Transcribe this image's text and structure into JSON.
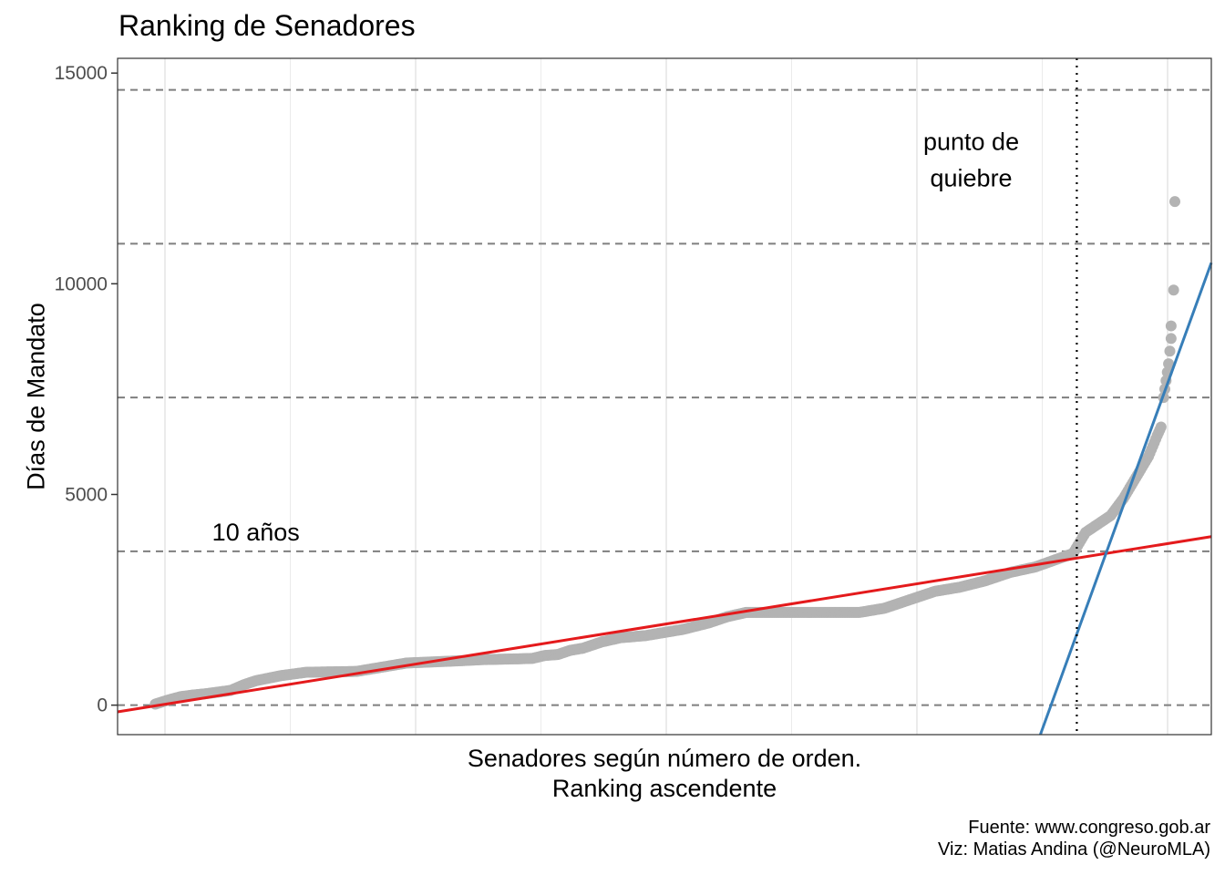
{
  "chart_data": {
    "type": "scatter",
    "title": "Ranking de Senadores",
    "xlabel_line1": "Senadores según número de orden.",
    "xlabel_line2": "Ranking ascendente",
    "ylabel": "Días de Mandato",
    "yticks": [
      "0",
      "5000",
      "10000",
      "15000"
    ],
    "ytick_values": [
      0,
      5000,
      10000,
      15000
    ],
    "ylim": [
      -700,
      15350
    ],
    "xlim": [
      -30,
      840
    ],
    "grid": "vertical minor lines only",
    "reference_lines_y": [
      0,
      3650,
      7300,
      10950,
      14600
    ],
    "reference_line_labels": [
      {
        "y": 3650,
        "x": 80,
        "text": "10 años"
      }
    ],
    "breakpoint": {
      "x": 733,
      "label_line1": "punto de",
      "label_line2": "quiebre",
      "label_x": 649,
      "label_y": 13000
    },
    "point_color": "#b3b3b3",
    "series_points": [
      [
        0,
        25
      ],
      [
        10,
        120
      ],
      [
        20,
        200
      ],
      [
        30,
        240
      ],
      [
        40,
        270
      ],
      [
        60,
        350
      ],
      [
        70,
        480
      ],
      [
        80,
        580
      ],
      [
        100,
        700
      ],
      [
        120,
        780
      ],
      [
        160,
        800
      ],
      [
        180,
        900
      ],
      [
        200,
        1000
      ],
      [
        240,
        1050
      ],
      [
        260,
        1080
      ],
      [
        290,
        1100
      ],
      [
        300,
        1110
      ],
      [
        310,
        1180
      ],
      [
        320,
        1200
      ],
      [
        330,
        1300
      ],
      [
        340,
        1350
      ],
      [
        355,
        1500
      ],
      [
        370,
        1600
      ],
      [
        390,
        1650
      ],
      [
        400,
        1700
      ],
      [
        420,
        1800
      ],
      [
        440,
        1950
      ],
      [
        455,
        2100
      ],
      [
        470,
        2200
      ],
      [
        490,
        2200
      ],
      [
        520,
        2200
      ],
      [
        560,
        2200
      ],
      [
        580,
        2300
      ],
      [
        600,
        2500
      ],
      [
        620,
        2700
      ],
      [
        640,
        2800
      ],
      [
        660,
        2950
      ],
      [
        680,
        3150
      ],
      [
        700,
        3280
      ],
      [
        730,
        3600
      ],
      [
        740,
        4100
      ],
      [
        750,
        4300
      ],
      [
        760,
        4500
      ],
      [
        770,
        4900
      ],
      [
        780,
        5400
      ],
      [
        790,
        5900
      ],
      [
        797,
        6400
      ],
      [
        800,
        6600
      ],
      [
        802,
        7300
      ],
      [
        804,
        7700
      ],
      [
        806,
        8100
      ],
      [
        808,
        8700
      ],
      [
        808,
        9000
      ],
      [
        810,
        9850
      ],
      [
        811,
        11950
      ]
    ],
    "fit_lines": [
      {
        "color": "#e41a1c",
        "x1": -30,
        "y1": -160,
        "x2": 840,
        "y2": 4000
      },
      {
        "color": "#377eb8",
        "x1": 704,
        "y1": -700,
        "x2": 840,
        "y2": 10500
      }
    ]
  },
  "caption": {
    "source": "Fuente: www.congreso.gob.ar",
    "viz": "Viz: Matias Andina (@NeuroMLA)"
  }
}
